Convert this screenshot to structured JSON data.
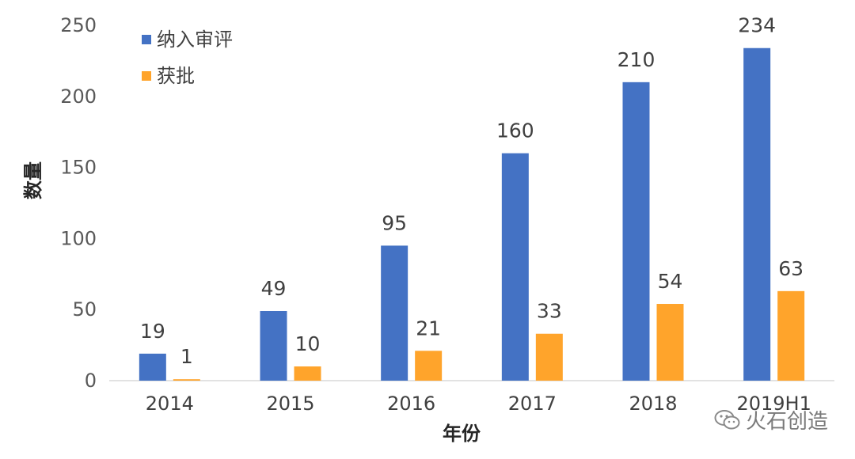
{
  "chart_data": {
    "type": "bar",
    "xlabel": "年份",
    "ylabel": "数量",
    "categories": [
      "2014",
      "2015",
      "2016",
      "2017",
      "2018",
      "2019H1"
    ],
    "series": [
      {
        "name": "纳入审评",
        "color": "#4472C4",
        "values": [
          19,
          49,
          95,
          160,
          210,
          234
        ]
      },
      {
        "name": "获批",
        "color": "#FFA42B",
        "values": [
          1,
          10,
          21,
          33,
          54,
          63
        ]
      }
    ],
    "ylim": [
      0,
      250
    ],
    "yticks": [
      0,
      50,
      100,
      150,
      200,
      250
    ],
    "legend": "top-left",
    "grid": false,
    "data_labels": true
  },
  "watermark": {
    "text": "火石创造",
    "icon": "wechat-icon"
  }
}
